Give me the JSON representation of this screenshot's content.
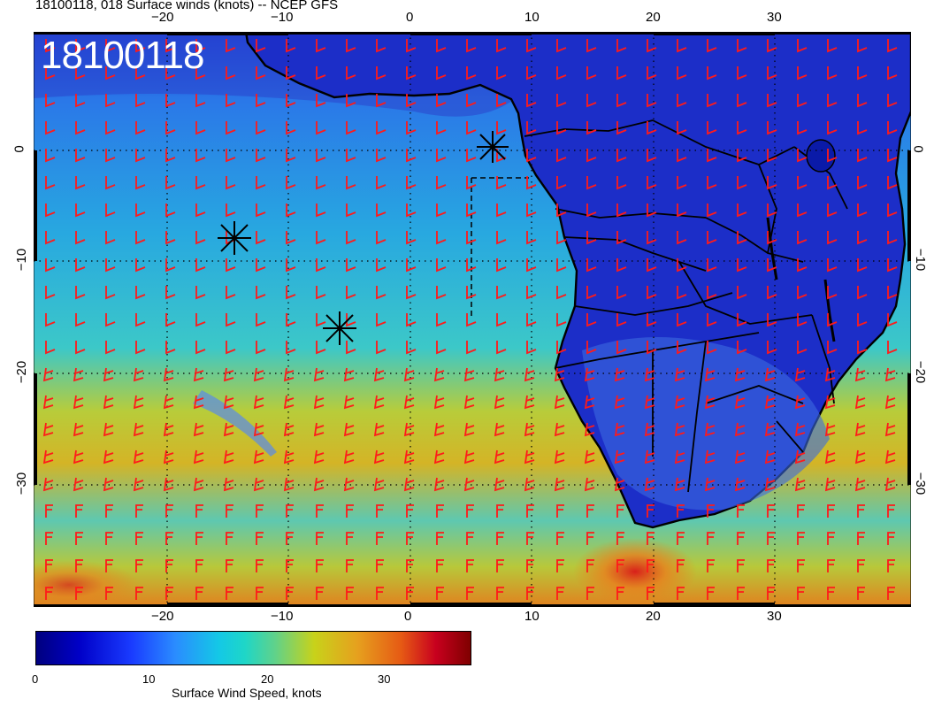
{
  "title": "18100118, 018 Surface winds (knots) -- NCEP GFS",
  "date_stamp": "18100118",
  "longitude_ticks": [
    "−20",
    "−10",
    "0",
    "10",
    "20",
    "30"
  ],
  "latitude_ticks": [
    "0",
    "−10",
    "−20",
    "−30"
  ],
  "colorbar": {
    "label": "Surface Wind Speed, knots",
    "ticks": [
      "0",
      "10",
      "20",
      "30"
    ],
    "colors": [
      "#00007f",
      "#0000c8",
      "#1a3cff",
      "#2a8cff",
      "#14c8e6",
      "#60d28a",
      "#c8d21a",
      "#e6a01e",
      "#e65a14",
      "#c8001e",
      "#7f0000"
    ]
  },
  "colors": {
    "barb": "#ff1a1a",
    "coast": "#000000",
    "grid": "#000000"
  }
}
